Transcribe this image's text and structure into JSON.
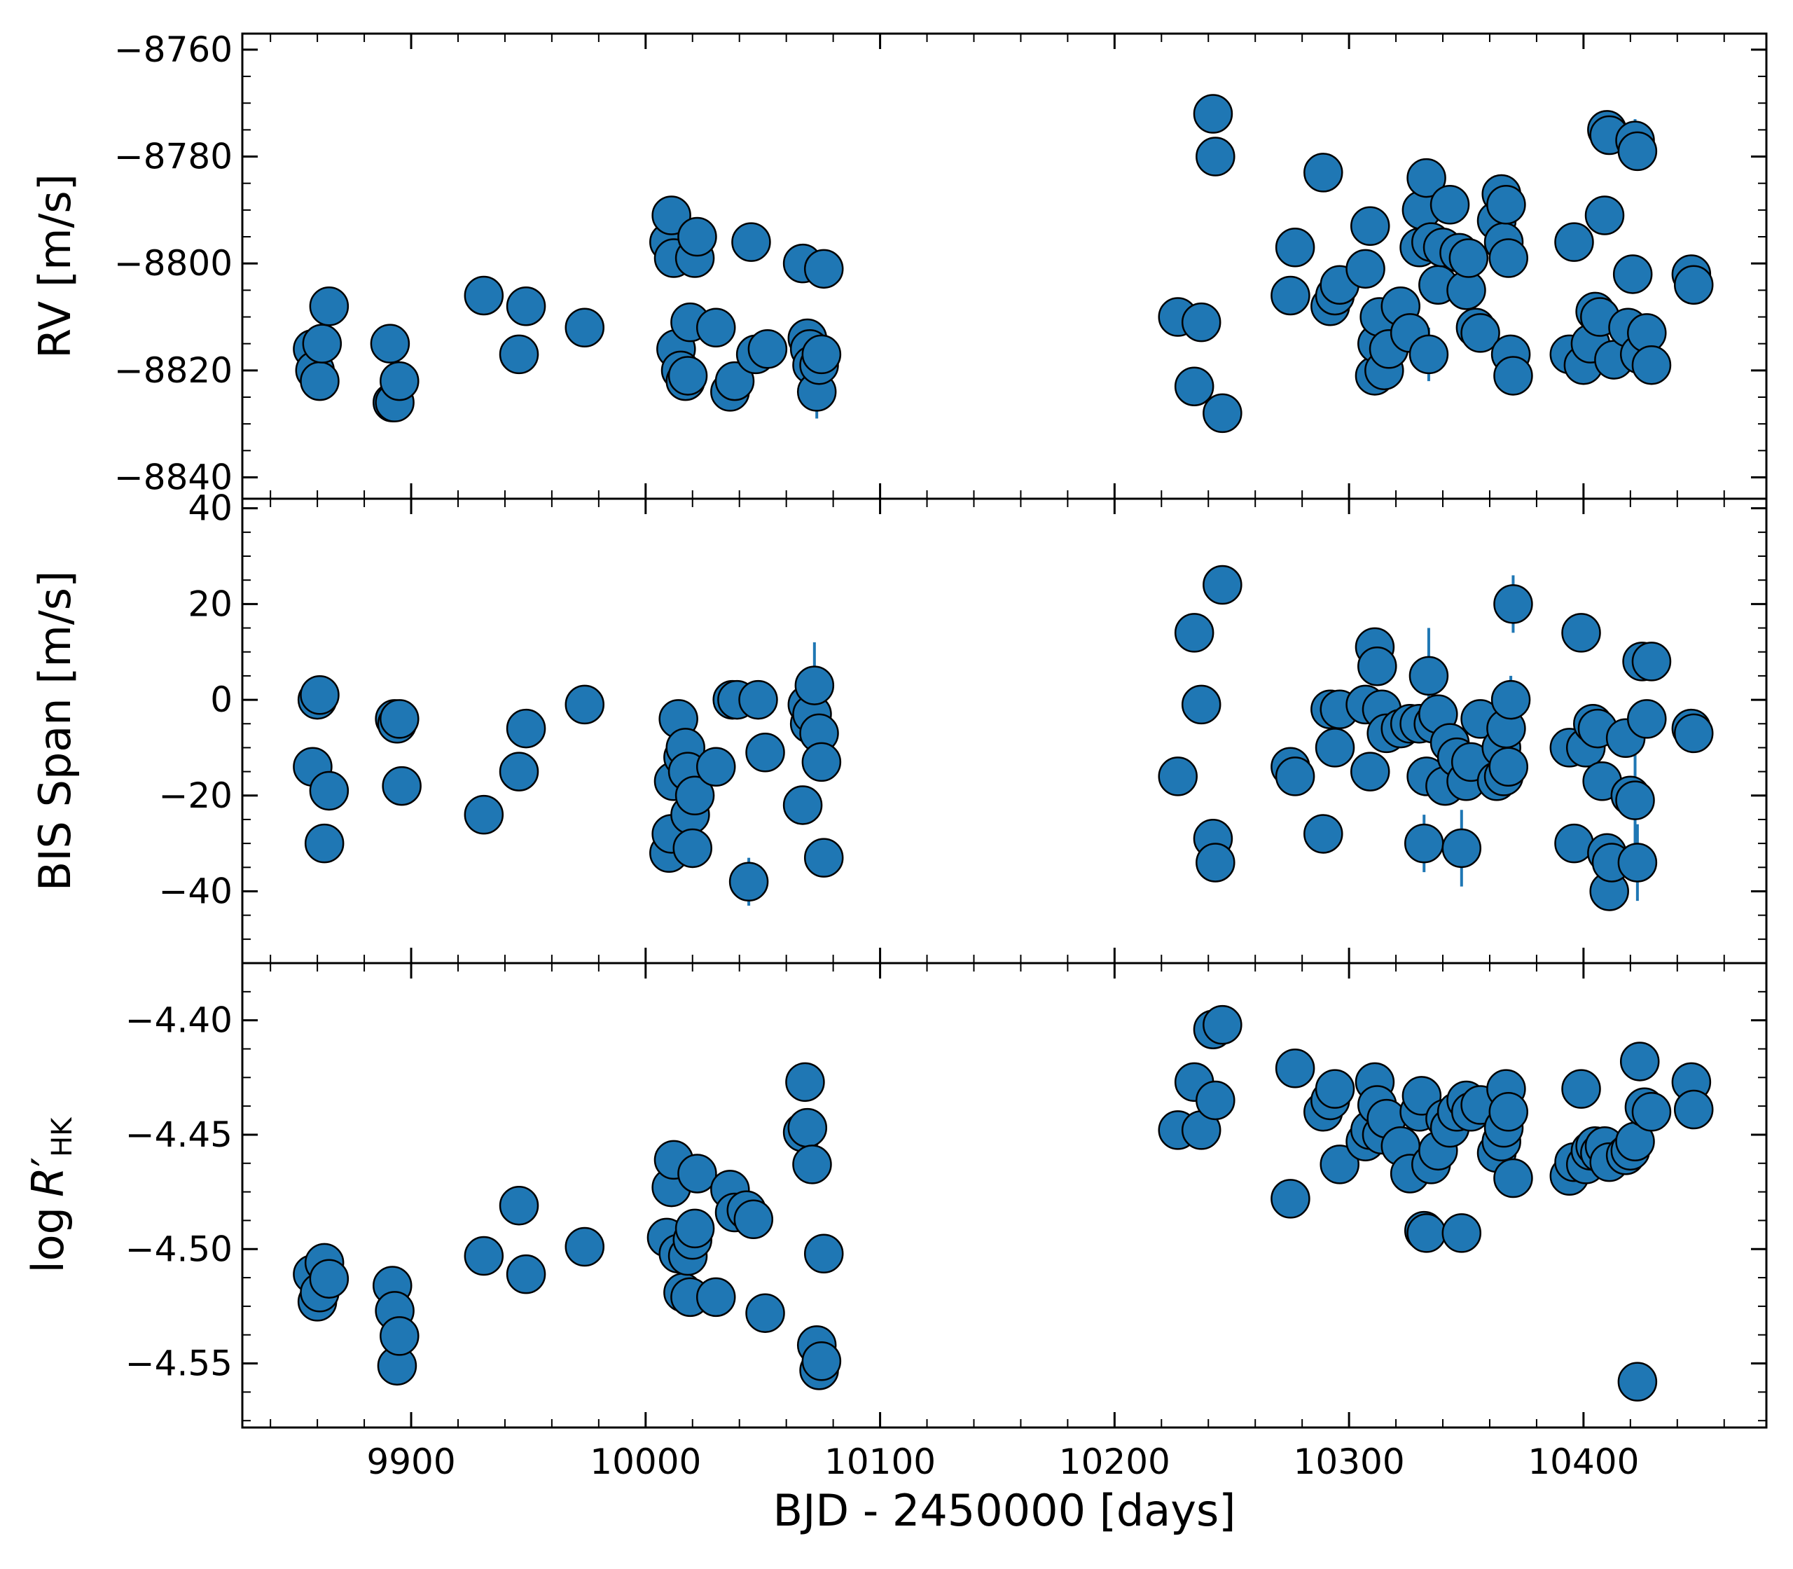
{
  "figure": {
    "xlabel": "BJD - 2450000 [days]",
    "xlim": [
      9828,
      10478
    ],
    "x_ticks": [
      9900,
      10000,
      10100,
      10200,
      10300,
      10400
    ],
    "x_ticklabels": [
      "9900",
      "10000",
      "10100",
      "10200",
      "10300",
      "10400"
    ],
    "marker_color": "#1f77b4",
    "marker_edge": "#000000",
    "errorbar_color": "#1f77b4"
  },
  "chart_data": [
    {
      "type": "scatter",
      "ylabel": "RV [m/s]",
      "ylim": [
        -8844,
        -8757
      ],
      "y_ticks": [
        -8760,
        -8780,
        -8800,
        -8820,
        -8840
      ],
      "y_ticklabels": [
        "−8760",
        "−8780",
        "−8800",
        "−8820",
        "−8840"
      ],
      "points": [
        {
          "x": 9858,
          "y": -8816
        },
        {
          "x": 9859,
          "y": -8820
        },
        {
          "x": 9861,
          "y": -8822
        },
        {
          "x": 9862,
          "y": -8815
        },
        {
          "x": 9865,
          "y": -8808
        },
        {
          "x": 9891,
          "y": -8815
        },
        {
          "x": 9892,
          "y": -8826
        },
        {
          "x": 9893,
          "y": -8826
        },
        {
          "x": 9895,
          "y": -8822
        },
        {
          "x": 9931,
          "y": -8806
        },
        {
          "x": 9946,
          "y": -8817
        },
        {
          "x": 9949,
          "y": -8808
        },
        {
          "x": 9974,
          "y": -8812
        },
        {
          "x": 10010,
          "y": -8796
        },
        {
          "x": 10011,
          "y": -8791
        },
        {
          "x": 10012,
          "y": -8799
        },
        {
          "x": 10013,
          "y": -8816
        },
        {
          "x": 10015,
          "y": -8820
        },
        {
          "x": 10017,
          "y": -8822
        },
        {
          "x": 10018,
          "y": -8821
        },
        {
          "x": 10019,
          "y": -8811
        },
        {
          "x": 10021,
          "y": -8799
        },
        {
          "x": 10022,
          "y": -8795
        },
        {
          "x": 10030,
          "y": -8812
        },
        {
          "x": 10036,
          "y": -8824
        },
        {
          "x": 10038,
          "y": -8822
        },
        {
          "x": 10045,
          "y": -8796
        },
        {
          "x": 10047,
          "y": -8817
        },
        {
          "x": 10052,
          "y": -8816
        },
        {
          "x": 10067,
          "y": -8800
        },
        {
          "x": 10069,
          "y": -8814
        },
        {
          "x": 10070,
          "y": -8816
        },
        {
          "x": 10071,
          "y": -8819
        },
        {
          "x": 10073,
          "y": -8824,
          "err": 5
        },
        {
          "x": 10074,
          "y": -8819
        },
        {
          "x": 10075,
          "y": -8817
        },
        {
          "x": 10076,
          "y": -8801
        },
        {
          "x": 10227,
          "y": -8810
        },
        {
          "x": 10234,
          "y": -8823
        },
        {
          "x": 10237,
          "y": -8811
        },
        {
          "x": 10242,
          "y": -8772
        },
        {
          "x": 10243,
          "y": -8780
        },
        {
          "x": 10246,
          "y": -8828
        },
        {
          "x": 10275,
          "y": -8806
        },
        {
          "x": 10277,
          "y": -8797
        },
        {
          "x": 10289,
          "y": -8783
        },
        {
          "x": 10292,
          "y": -8808
        },
        {
          "x": 10294,
          "y": -8806
        },
        {
          "x": 10296,
          "y": -8804
        },
        {
          "x": 10307,
          "y": -8801
        },
        {
          "x": 10309,
          "y": -8793
        },
        {
          "x": 10311,
          "y": -8821
        },
        {
          "x": 10312,
          "y": -8815
        },
        {
          "x": 10313,
          "y": -8810
        },
        {
          "x": 10315,
          "y": -8820
        },
        {
          "x": 10317,
          "y": -8816
        },
        {
          "x": 10322,
          "y": -8808
        },
        {
          "x": 10326,
          "y": -8813
        },
        {
          "x": 10330,
          "y": -8797
        },
        {
          "x": 10331,
          "y": -8790
        },
        {
          "x": 10333,
          "y": -8784
        },
        {
          "x": 10334,
          "y": -8817,
          "err": 5
        },
        {
          "x": 10335,
          "y": -8796
        },
        {
          "x": 10338,
          "y": -8804
        },
        {
          "x": 10340,
          "y": -8797
        },
        {
          "x": 10343,
          "y": -8789
        },
        {
          "x": 10347,
          "y": -8798
        },
        {
          "x": 10350,
          "y": -8805
        },
        {
          "x": 10351,
          "y": -8799
        },
        {
          "x": 10354,
          "y": -8812
        },
        {
          "x": 10356,
          "y": -8813
        },
        {
          "x": 10363,
          "y": -8792
        },
        {
          "x": 10365,
          "y": -8787
        },
        {
          "x": 10366,
          "y": -8796
        },
        {
          "x": 10367,
          "y": -8789
        },
        {
          "x": 10368,
          "y": -8799
        },
        {
          "x": 10369,
          "y": -8817
        },
        {
          "x": 10370,
          "y": -8821
        },
        {
          "x": 10394,
          "y": -8817
        },
        {
          "x": 10396,
          "y": -8796
        },
        {
          "x": 10400,
          "y": -8819
        },
        {
          "x": 10403,
          "y": -8815
        },
        {
          "x": 10405,
          "y": -8809
        },
        {
          "x": 10407,
          "y": -8810
        },
        {
          "x": 10409,
          "y": -8791
        },
        {
          "x": 10410,
          "y": -8775
        },
        {
          "x": 10411,
          "y": -8776
        },
        {
          "x": 10413,
          "y": -8818
        },
        {
          "x": 10419,
          "y": -8812
        },
        {
          "x": 10421,
          "y": -8802
        },
        {
          "x": 10422,
          "y": -8777,
          "err": 4
        },
        {
          "x": 10423,
          "y": -8779
        },
        {
          "x": 10424,
          "y": -8817
        },
        {
          "x": 10427,
          "y": -8813
        },
        {
          "x": 10429,
          "y": -8819
        },
        {
          "x": 10446,
          "y": -8802
        },
        {
          "x": 10447,
          "y": -8804
        }
      ]
    },
    {
      "type": "scatter",
      "ylabel": "BIS Span [m/s]",
      "ylim": [
        -55,
        42
      ],
      "y_ticks": [
        40,
        20,
        0,
        -20,
        -40
      ],
      "y_ticklabels": [
        "40",
        "20",
        "0",
        "−20",
        "−40"
      ],
      "points": [
        {
          "x": 9858,
          "y": -14
        },
        {
          "x": 9860,
          "y": 0
        },
        {
          "x": 9861,
          "y": 1
        },
        {
          "x": 9863,
          "y": -30
        },
        {
          "x": 9865,
          "y": -19
        },
        {
          "x": 9893,
          "y": -4
        },
        {
          "x": 9894,
          "y": -5
        },
        {
          "x": 9895,
          "y": -4
        },
        {
          "x": 9896,
          "y": -18
        },
        {
          "x": 9931,
          "y": -24
        },
        {
          "x": 9946,
          "y": -15
        },
        {
          "x": 9949,
          "y": -6
        },
        {
          "x": 9974,
          "y": -1
        },
        {
          "x": 10010,
          "y": -32
        },
        {
          "x": 10011,
          "y": -28
        },
        {
          "x": 10012,
          "y": -17
        },
        {
          "x": 10014,
          "y": -4
        },
        {
          "x": 10016,
          "y": -12
        },
        {
          "x": 10017,
          "y": -10
        },
        {
          "x": 10018,
          "y": -15
        },
        {
          "x": 10019,
          "y": -24
        },
        {
          "x": 10020,
          "y": -31
        },
        {
          "x": 10021,
          "y": -20
        },
        {
          "x": 10030,
          "y": -14
        },
        {
          "x": 10037,
          "y": 0
        },
        {
          "x": 10039,
          "y": 0
        },
        {
          "x": 10044,
          "y": -38,
          "err": 5
        },
        {
          "x": 10048,
          "y": 0
        },
        {
          "x": 10051,
          "y": -11
        },
        {
          "x": 10067,
          "y": -22
        },
        {
          "x": 10069,
          "y": -1
        },
        {
          "x": 10070,
          "y": -5
        },
        {
          "x": 10071,
          "y": -3
        },
        {
          "x": 10072,
          "y": 3,
          "err": 9
        },
        {
          "x": 10074,
          "y": -7
        },
        {
          "x": 10075,
          "y": -13
        },
        {
          "x": 10076,
          "y": -33
        },
        {
          "x": 10227,
          "y": -16
        },
        {
          "x": 10234,
          "y": 14
        },
        {
          "x": 10237,
          "y": -1
        },
        {
          "x": 10242,
          "y": -29
        },
        {
          "x": 10243,
          "y": -34
        },
        {
          "x": 10246,
          "y": 24
        },
        {
          "x": 10275,
          "y": -14
        },
        {
          "x": 10277,
          "y": -16
        },
        {
          "x": 10289,
          "y": -28
        },
        {
          "x": 10292,
          "y": -2
        },
        {
          "x": 10294,
          "y": -10
        },
        {
          "x": 10296,
          "y": -2
        },
        {
          "x": 10307,
          "y": -1
        },
        {
          "x": 10309,
          "y": -15
        },
        {
          "x": 10311,
          "y": 11
        },
        {
          "x": 10312,
          "y": 7
        },
        {
          "x": 10314,
          "y": -2
        },
        {
          "x": 10316,
          "y": -7
        },
        {
          "x": 10322,
          "y": -6,
          "err": 4
        },
        {
          "x": 10326,
          "y": -5
        },
        {
          "x": 10330,
          "y": -5
        },
        {
          "x": 10332,
          "y": -30,
          "err": 6
        },
        {
          "x": 10333,
          "y": -16
        },
        {
          "x": 10334,
          "y": 5,
          "err": 10
        },
        {
          "x": 10336,
          "y": -5
        },
        {
          "x": 10338,
          "y": -3
        },
        {
          "x": 10341,
          "y": -18
        },
        {
          "x": 10343,
          "y": -9
        },
        {
          "x": 10346,
          "y": -12
        },
        {
          "x": 10348,
          "y": -31,
          "err": 8
        },
        {
          "x": 10350,
          "y": -17
        },
        {
          "x": 10352,
          "y": -13
        },
        {
          "x": 10356,
          "y": -4
        },
        {
          "x": 10363,
          "y": -17
        },
        {
          "x": 10365,
          "y": -10
        },
        {
          "x": 10366,
          "y": -16
        },
        {
          "x": 10367,
          "y": -6
        },
        {
          "x": 10368,
          "y": -14
        },
        {
          "x": 10369,
          "y": 0,
          "err": 5
        },
        {
          "x": 10370,
          "y": 20,
          "err": 6
        },
        {
          "x": 10394,
          "y": -10
        },
        {
          "x": 10396,
          "y": -30
        },
        {
          "x": 10399,
          "y": 14
        },
        {
          "x": 10401,
          "y": -10
        },
        {
          "x": 10404,
          "y": -5
        },
        {
          "x": 10406,
          "y": -6
        },
        {
          "x": 10408,
          "y": -17
        },
        {
          "x": 10410,
          "y": -32
        },
        {
          "x": 10411,
          "y": -40
        },
        {
          "x": 10412,
          "y": -34
        },
        {
          "x": 10418,
          "y": -8
        },
        {
          "x": 10420,
          "y": -20
        },
        {
          "x": 10422,
          "y": -21,
          "err": 12
        },
        {
          "x": 10423,
          "y": -34,
          "err": 8
        },
        {
          "x": 10425,
          "y": 8
        },
        {
          "x": 10427,
          "y": -4
        },
        {
          "x": 10429,
          "y": 8
        },
        {
          "x": 10446,
          "y": -6
        },
        {
          "x": 10447,
          "y": -7
        }
      ]
    },
    {
      "type": "scatter",
      "ylabel": "log R′HK",
      "ylim": [
        -4.578,
        -4.375
      ],
      "y_ticks": [
        -4.4,
        -4.45,
        -4.5,
        -4.55
      ],
      "y_ticklabels": [
        "−4.40",
        "−4.45",
        "−4.50",
        "−4.55"
      ],
      "points": [
        {
          "x": 9858,
          "y": -4.511
        },
        {
          "x": 9860,
          "y": -4.523
        },
        {
          "x": 9861,
          "y": -4.519
        },
        {
          "x": 9863,
          "y": -4.506
        },
        {
          "x": 9865,
          "y": -4.513
        },
        {
          "x": 9892,
          "y": -4.516
        },
        {
          "x": 9893,
          "y": -4.527
        },
        {
          "x": 9894,
          "y": -4.551
        },
        {
          "x": 9895,
          "y": -4.538
        },
        {
          "x": 9931,
          "y": -4.503
        },
        {
          "x": 9946,
          "y": -4.481
        },
        {
          "x": 9949,
          "y": -4.511
        },
        {
          "x": 9974,
          "y": -4.499
        },
        {
          "x": 10009,
          "y": -4.495
        },
        {
          "x": 10011,
          "y": -4.473
        },
        {
          "x": 10012,
          "y": -4.461
        },
        {
          "x": 10014,
          "y": -4.502
        },
        {
          "x": 10016,
          "y": -4.519
        },
        {
          "x": 10018,
          "y": -4.503
        },
        {
          "x": 10019,
          "y": -4.521
        },
        {
          "x": 10020,
          "y": -4.496
        },
        {
          "x": 10021,
          "y": -4.491
        },
        {
          "x": 10022,
          "y": -4.467
        },
        {
          "x": 10030,
          "y": -4.521
        },
        {
          "x": 10036,
          "y": -4.474
        },
        {
          "x": 10038,
          "y": -4.484
        },
        {
          "x": 10043,
          "y": -4.483
        },
        {
          "x": 10046,
          "y": -4.487
        },
        {
          "x": 10051,
          "y": -4.528
        },
        {
          "x": 10067,
          "y": -4.449
        },
        {
          "x": 10068,
          "y": -4.427
        },
        {
          "x": 10069,
          "y": -4.447
        },
        {
          "x": 10071,
          "y": -4.463
        },
        {
          "x": 10073,
          "y": -4.542
        },
        {
          "x": 10074,
          "y": -4.553
        },
        {
          "x": 10075,
          "y": -4.549
        },
        {
          "x": 10076,
          "y": -4.502
        },
        {
          "x": 10227,
          "y": -4.448
        },
        {
          "x": 10234,
          "y": -4.427
        },
        {
          "x": 10237,
          "y": -4.448
        },
        {
          "x": 10242,
          "y": -4.404
        },
        {
          "x": 10243,
          "y": -4.435
        },
        {
          "x": 10246,
          "y": -4.402
        },
        {
          "x": 10275,
          "y": -4.478
        },
        {
          "x": 10277,
          "y": -4.421
        },
        {
          "x": 10289,
          "y": -4.44
        },
        {
          "x": 10292,
          "y": -4.435
        },
        {
          "x": 10294,
          "y": -4.43
        },
        {
          "x": 10296,
          "y": -4.463
        },
        {
          "x": 10307,
          "y": -4.453
        },
        {
          "x": 10309,
          "y": -4.448
        },
        {
          "x": 10311,
          "y": -4.427
        },
        {
          "x": 10312,
          "y": -4.437
        },
        {
          "x": 10314,
          "y": -4.45
        },
        {
          "x": 10316,
          "y": -4.443
        },
        {
          "x": 10322,
          "y": -4.455
        },
        {
          "x": 10326,
          "y": -4.467
        },
        {
          "x": 10330,
          "y": -4.44
        },
        {
          "x": 10331,
          "y": -4.433
        },
        {
          "x": 10332,
          "y": -4.492
        },
        {
          "x": 10333,
          "y": -4.493
        },
        {
          "x": 10335,
          "y": -4.463
        },
        {
          "x": 10338,
          "y": -4.457
        },
        {
          "x": 10341,
          "y": -4.443
        },
        {
          "x": 10343,
          "y": -4.447
        },
        {
          "x": 10346,
          "y": -4.44
        },
        {
          "x": 10348,
          "y": -4.493
        },
        {
          "x": 10350,
          "y": -4.435
        },
        {
          "x": 10352,
          "y": -4.44
        },
        {
          "x": 10356,
          "y": -4.437
        },
        {
          "x": 10363,
          "y": -4.458
        },
        {
          "x": 10365,
          "y": -4.453
        },
        {
          "x": 10366,
          "y": -4.447
        },
        {
          "x": 10367,
          "y": -4.43
        },
        {
          "x": 10368,
          "y": -4.44
        },
        {
          "x": 10370,
          "y": -4.469
        },
        {
          "x": 10394,
          "y": -4.468
        },
        {
          "x": 10396,
          "y": -4.462
        },
        {
          "x": 10399,
          "y": -4.43
        },
        {
          "x": 10401,
          "y": -4.463
        },
        {
          "x": 10403,
          "y": -4.457
        },
        {
          "x": 10405,
          "y": -4.455
        },
        {
          "x": 10407,
          "y": -4.458
        },
        {
          "x": 10409,
          "y": -4.455
        },
        {
          "x": 10411,
          "y": -4.462
        },
        {
          "x": 10418,
          "y": -4.459
        },
        {
          "x": 10420,
          "y": -4.457
        },
        {
          "x": 10422,
          "y": -4.453
        },
        {
          "x": 10423,
          "y": -4.558
        },
        {
          "x": 10424,
          "y": -4.418
        },
        {
          "x": 10426,
          "y": -4.438
        },
        {
          "x": 10429,
          "y": -4.44
        },
        {
          "x": 10446,
          "y": -4.427
        },
        {
          "x": 10447,
          "y": -4.439
        }
      ]
    }
  ]
}
